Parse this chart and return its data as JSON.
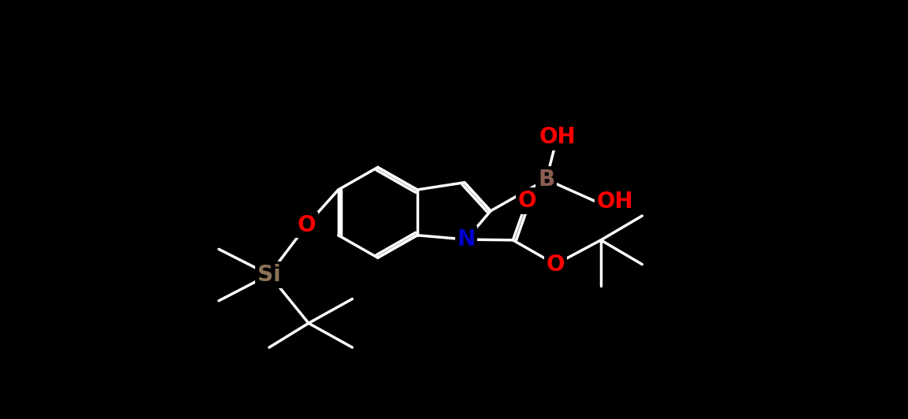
{
  "bg": "#000000",
  "bond_color": "#ffffff",
  "bw": 2.5,
  "atom_colors": {
    "B": "#8b5e52",
    "N": "#0000cd",
    "O": "#ff0000",
    "Si": "#8b7355"
  },
  "fs": 20
}
